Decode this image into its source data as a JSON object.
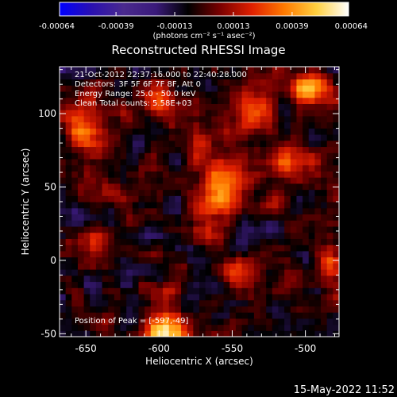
{
  "chart_data": {
    "type": "heatmap",
    "title": "Reconstructed RHESSI Image",
    "xlabel": "Heliocentric X (arcsec)",
    "ylabel": "Heliocentric Y (arcsec)",
    "xlim": [
      -668,
      -477
    ],
    "ylim": [
      -52,
      132
    ],
    "x_ticks": [
      -650,
      -600,
      -550,
      -500
    ],
    "y_ticks": [
      -50,
      0,
      50,
      100
    ],
    "x_tick_labels": [
      "-650",
      "-600",
      "-550",
      "-500"
    ],
    "y_tick_labels": [
      "-50",
      "0",
      "50",
      "100"
    ],
    "colorbar": {
      "units": "(photons cm⁻² s⁻¹ asec⁻²)",
      "range": [
        -0.00064,
        0.00064
      ],
      "tick_values": [
        -0.00064,
        -0.00039,
        -0.00013,
        0.00013,
        0.00039,
        0.00064
      ],
      "tick_labels": [
        "-0.00064",
        "-0.00039",
        "-0.00013",
        "0.00013",
        "0.00039",
        "0.00064"
      ],
      "colors": [
        "#0000ff",
        "#2a10b0",
        "#4a2a8e",
        "#3a1a7a",
        "#000000",
        "#7a0000",
        "#e02000",
        "#ff7a00",
        "#ffd040",
        "#ffffff"
      ]
    },
    "info": [
      "21-Oct-2012 22:37:16.000 to 22:40:28.000",
      "Detectors: 3F 5F 6F 7F 8F, Att 0",
      "Energy Range: 25.0 - 50.0 keV",
      "Clean    Total counts: 5.58E+03"
    ],
    "peak_text": "Position of Peak = [-597,-49]",
    "sources": [
      {
        "x": -597,
        "y": -49,
        "rx": 14,
        "ry": 12,
        "value": 0.00064
      },
      {
        "x": -557,
        "y": 50,
        "rx": 15,
        "ry": 20,
        "value": 0.00052
      },
      {
        "x": -600,
        "y": 110,
        "rx": 10,
        "ry": 10,
        "value": 0.00048
      },
      {
        "x": -497,
        "y": 118,
        "rx": 13,
        "ry": 12,
        "value": 0.00058
      },
      {
        "x": -535,
        "y": 100,
        "rx": 14,
        "ry": 14,
        "value": 0.00034
      },
      {
        "x": -510,
        "y": 68,
        "rx": 18,
        "ry": 14,
        "value": 0.0003
      },
      {
        "x": -650,
        "y": 88,
        "rx": 14,
        "ry": 22,
        "value": 0.00034
      },
      {
        "x": -648,
        "y": 10,
        "rx": 12,
        "ry": 12,
        "value": 0.00024
      },
      {
        "x": -548,
        "y": -8,
        "rx": 14,
        "ry": 10,
        "value": 0.00026
      },
      {
        "x": -483,
        "y": 0,
        "rx": 8,
        "ry": 10,
        "value": 0.00036
      },
      {
        "x": -633,
        "y": 45,
        "rx": 10,
        "ry": 8,
        "value": 0.00022
      },
      {
        "x": -568,
        "y": 20,
        "rx": 8,
        "ry": 8,
        "value": 0.00024
      },
      {
        "x": -572,
        "y": 80,
        "rx": 10,
        "ry": 8,
        "value": 0.00028
      },
      {
        "x": -520,
        "y": 35,
        "rx": 8,
        "ry": 10,
        "value": 0.0002
      },
      {
        "x": -595,
        "y": -20,
        "rx": 10,
        "ry": 6,
        "value": 0.0002
      }
    ],
    "grid": false
  },
  "footer": {
    "timestamp": "15-May-2022 11:52"
  }
}
